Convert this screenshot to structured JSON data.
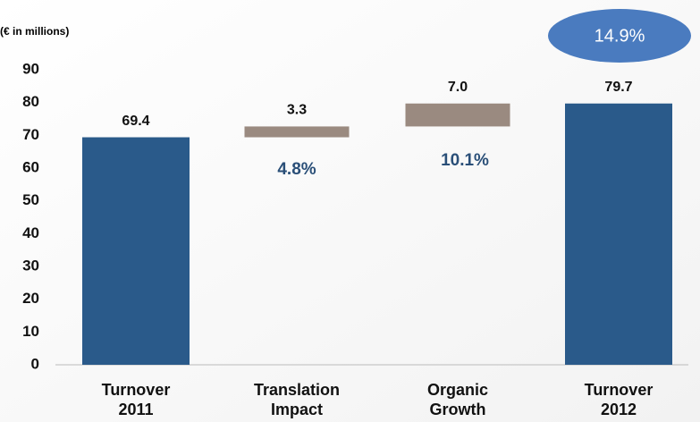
{
  "chart_data": {
    "type": "waterfall",
    "y_label": "(€ in millions)",
    "categories": [
      [
        "Turnover",
        "2011"
      ],
      [
        "Translation",
        "Impact"
      ],
      [
        "Organic",
        "Growth"
      ],
      [
        "Turnover",
        "2012"
      ]
    ],
    "values": [
      69.4,
      3.3,
      7,
      79.7
    ],
    "value_labels": [
      "69.4",
      "3.3",
      "7.0",
      "79.7"
    ],
    "totals": [
      true,
      false,
      false,
      true
    ],
    "total_color": "#2a5a8a",
    "change_color": "#9a8a80",
    "annotations": [
      "4.8%",
      "10.1%",
      "14.9%"
    ],
    "ylim": [
      0,
      90
    ],
    "yticks": [
      0,
      10,
      20,
      30,
      40,
      50,
      60,
      70,
      80,
      90
    ],
    "grid": false
  }
}
